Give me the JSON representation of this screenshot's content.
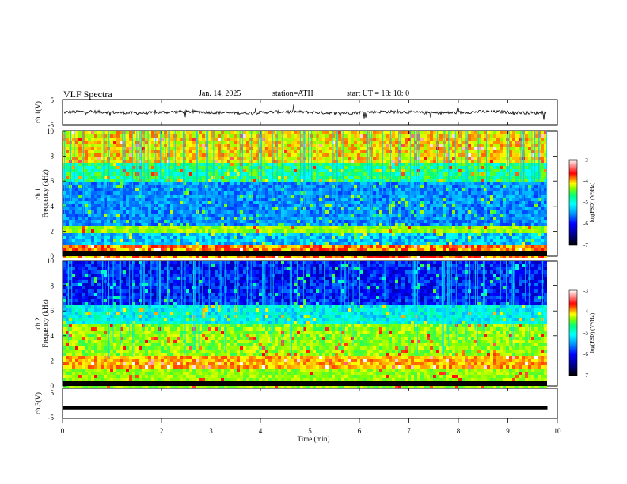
{
  "header": {
    "title": "VLF  Spectra",
    "date": "Jan. 14, 2025",
    "station": "station=ATH",
    "start": "start  UT  =   18: 10: 0"
  },
  "colors": {
    "spectro_scale": [
      "#000000",
      "#00008b",
      "#0000ff",
      "#0080ff",
      "#00ffff",
      "#00ff80",
      "#80ff00",
      "#ffff00",
      "#ff8000",
      "#ff0000",
      "#ff8080",
      "#ffffff"
    ]
  },
  "chart_data": [
    {
      "type": "line",
      "name": "ch1 waveform",
      "ylabel": "ch.1(V)",
      "ylim": [
        -5,
        5
      ],
      "yticks": [
        "5",
        "-5"
      ],
      "xlim": [
        0,
        10
      ],
      "trace": "noisy signal around 0 V, roughly between -1 and +1 V with spikes"
    },
    {
      "type": "heatmap",
      "name": "ch1 spectrogram",
      "ylabel_top": "ch.1",
      "ylabel": "Frequency  (kHz)",
      "ylim": [
        0,
        10
      ],
      "yticks": [
        "0",
        "2",
        "4",
        "6",
        "8",
        "10"
      ],
      "xlim": [
        0,
        9.8
      ],
      "colorbar": {
        "label": "log(PSD) (V²/Hz)",
        "range": [
          -7,
          -3
        ],
        "ticks": [
          "-3",
          "-4",
          "-5",
          "-6",
          "-7"
        ]
      }
    },
    {
      "type": "heatmap",
      "name": "ch2 spectrogram",
      "ylabel_top": "ch.2",
      "ylabel": "Frequency  (kHz)",
      "ylim": [
        0,
        10
      ],
      "yticks": [
        "0",
        "2",
        "4",
        "6",
        "8",
        "10"
      ],
      "xlim": [
        0,
        9.8
      ],
      "colorbar": {
        "label": "log(PSD) (V²/Hz)",
        "range": [
          -7,
          -3
        ],
        "ticks": [
          "-3",
          "-4",
          "-5",
          "-6",
          "-7"
        ]
      }
    },
    {
      "type": "line",
      "name": "ch3 waveform",
      "ylabel": "ch.3(V)",
      "ylim": [
        -5,
        5
      ],
      "yticks": [
        "5",
        "-5"
      ],
      "xlim": [
        0,
        10
      ],
      "value": -1.5
    }
  ],
  "xaxis": {
    "label": "Time  (min)",
    "ticks": [
      "0",
      "1",
      "2",
      "3",
      "4",
      "5",
      "6",
      "7",
      "8",
      "9",
      "10"
    ]
  }
}
